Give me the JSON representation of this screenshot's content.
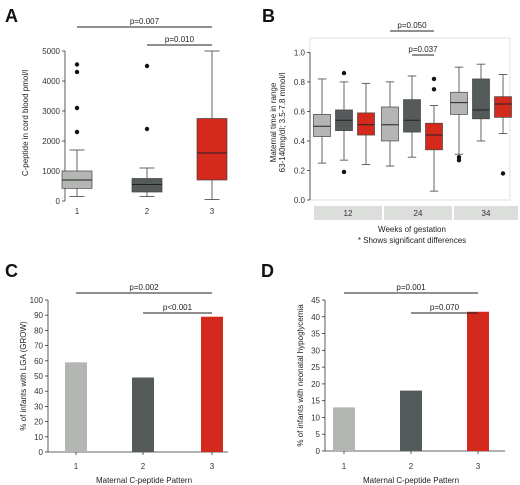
{
  "colors": {
    "light": "#b3b6b3",
    "dark": "#555a5a",
    "red": "#d42a1e",
    "axis": "#333333",
    "strip": "#dcdedc",
    "whisker": "#555555"
  },
  "chart_data": [
    {
      "panel": "A",
      "type": "box",
      "categories": [
        "1",
        "2",
        "3"
      ],
      "ylabel": "C-peptide in cord blood pmol/l",
      "ylim": [
        0,
        5200
      ],
      "yticks": [
        0,
        1000,
        2000,
        3000,
        4000,
        5000
      ],
      "boxes": [
        {
          "category": "1",
          "color": "light",
          "min": 150,
          "q1": 420,
          "median": 700,
          "q3": 1000,
          "max": 1700,
          "outliers": [
            2300,
            3100,
            4300,
            4550
          ]
        },
        {
          "category": "2",
          "color": "dark",
          "min": 150,
          "q1": 300,
          "median": 550,
          "q3": 750,
          "max": 1100,
          "outliers": [
            2400,
            4500
          ]
        },
        {
          "category": "3",
          "color": "red",
          "min": 50,
          "q1": 700,
          "median": 1600,
          "q3": 2750,
          "max": 5000,
          "outliers": []
        }
      ],
      "brackets": [
        {
          "from": "1",
          "to": "3",
          "label": "p=0.007"
        },
        {
          "from": "2",
          "to": "3",
          "label": "p=0.010"
        }
      ]
    },
    {
      "panel": "B",
      "type": "box",
      "groups": [
        "12",
        "24",
        "34"
      ],
      "xlabel": "Weeks of gestation",
      "note": "* Shows significant differences",
      "ylabel": "Maternal time in range",
      "ylabel2": "63-140mg/dl; 3.5-7.8 mmol/l",
      "ylim": [
        0,
        1.05
      ],
      "yticks": [
        0.0,
        0.2,
        0.4,
        0.6,
        0.8,
        1.0
      ],
      "ytick_labels": [
        "0.0",
        "0.2",
        "0.4",
        "0.6",
        "0.8",
        "1.0"
      ],
      "boxes": [
        {
          "group": "12",
          "color": "light",
          "min": 0.25,
          "q1": 0.43,
          "median": 0.5,
          "q3": 0.58,
          "max": 0.82,
          "outliers": []
        },
        {
          "group": "12",
          "color": "dark",
          "min": 0.27,
          "q1": 0.47,
          "median": 0.54,
          "q3": 0.61,
          "max": 0.8,
          "outliers": [
            0.19,
            0.86
          ]
        },
        {
          "group": "12",
          "color": "red",
          "min": 0.24,
          "q1": 0.44,
          "median": 0.51,
          "q3": 0.59,
          "max": 0.79,
          "outliers": []
        },
        {
          "group": "24",
          "color": "light",
          "min": 0.23,
          "q1": 0.4,
          "median": 0.51,
          "q3": 0.63,
          "max": 0.8,
          "outliers": []
        },
        {
          "group": "24",
          "color": "dark",
          "min": 0.29,
          "q1": 0.46,
          "median": 0.54,
          "q3": 0.68,
          "max": 0.84,
          "outliers": []
        },
        {
          "group": "24",
          "color": "red",
          "min": 0.06,
          "q1": 0.34,
          "median": 0.44,
          "q3": 0.52,
          "max": 0.64,
          "outliers": [
            0.75,
            0.82
          ]
        },
        {
          "group": "34",
          "color": "light",
          "min": 0.31,
          "q1": 0.58,
          "median": 0.66,
          "q3": 0.73,
          "max": 0.9,
          "outliers": [
            0.27,
            0.29
          ]
        },
        {
          "group": "34",
          "color": "dark",
          "min": 0.4,
          "q1": 0.55,
          "median": 0.61,
          "q3": 0.82,
          "max": 0.92,
          "outliers": []
        },
        {
          "group": "34",
          "color": "red",
          "min": 0.45,
          "q1": 0.56,
          "median": 0.65,
          "q3": 0.7,
          "max": 0.85,
          "outliers": [
            0.18
          ]
        }
      ],
      "brackets": [
        {
          "from": 3,
          "to": 5,
          "label": "p=0.050"
        },
        {
          "from": 4,
          "to": 5,
          "label": "p=0.037"
        }
      ]
    },
    {
      "panel": "C",
      "type": "bar",
      "categories": [
        "1",
        "2",
        "3"
      ],
      "values": [
        59,
        49,
        89
      ],
      "colors": [
        "light",
        "dark",
        "red"
      ],
      "xlabel": "Maternal C-peptide Pattern",
      "ylabel": "% of infants with LGA (GROW)",
      "ylim": [
        0,
        100
      ],
      "yticks": [
        0,
        10,
        20,
        30,
        40,
        50,
        60,
        70,
        80,
        90,
        100
      ],
      "brackets": [
        {
          "from": "1",
          "to": "3",
          "label": "p=0.002"
        },
        {
          "from": "2",
          "to": "3",
          "label": "p<0.001"
        }
      ]
    },
    {
      "panel": "D",
      "type": "bar",
      "categories": [
        "1",
        "2",
        "3"
      ],
      "values": [
        13,
        18,
        41.5
      ],
      "colors": [
        "light",
        "dark",
        "red"
      ],
      "xlabel": "Maternal C-peptide Pattern",
      "ylabel": "% of infants with neonatal hypoglycemia",
      "ylim": [
        0,
        45
      ],
      "yticks": [
        0,
        5,
        10,
        15,
        20,
        25,
        30,
        35,
        40,
        45
      ],
      "brackets": [
        {
          "from": "1",
          "to": "3",
          "label": "p=0.001"
        },
        {
          "from": "2",
          "to": "3",
          "label": "p=0.070"
        }
      ]
    }
  ]
}
